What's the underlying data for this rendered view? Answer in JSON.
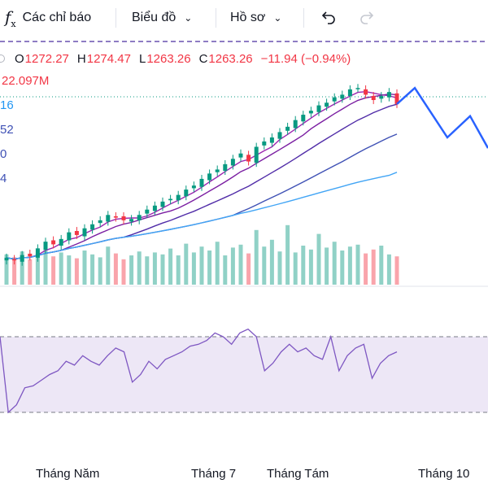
{
  "toolbar": {
    "indicators_label": "Các chỉ báo",
    "chart_type_label": "Biểu đồ",
    "profile_label": "Hồ sơ"
  },
  "legend": {
    "open_key": "O",
    "open_val": "1272.27",
    "high_key": "H",
    "high_val": "1274.47",
    "low_key": "L",
    "low_val": "1263.26",
    "close_key": "C",
    "close_val": "1263.26",
    "change": "−11.94 (−0.94%)",
    "volume": "22.097M"
  },
  "side_labels": {
    "ma1": "16",
    "ma2": "52",
    "ma3": "0",
    "ma4": "4"
  },
  "x_axis_labels": [
    "Tháng Năm",
    "Tháng 7",
    "Tháng Tám",
    "Tháng 10"
  ],
  "colors": {
    "up": "#089981",
    "down": "#f23645",
    "forecast": "#2962ff",
    "rsi": "#7e57c2",
    "rsi_band": "#ede7f6"
  },
  "chart_data": {
    "type": "candlestick",
    "last": {
      "open": 1272.27,
      "high": 1274.47,
      "low": 1263.26,
      "close": 1263.26,
      "change": -11.94,
      "change_pct": -0.94
    },
    "close_series": [
      1148,
      1146,
      1150,
      1149,
      1155,
      1160,
      1158,
      1162,
      1167,
      1165,
      1170,
      1173,
      1176,
      1180,
      1178,
      1176,
      1177,
      1180,
      1184,
      1187,
      1190,
      1192,
      1195,
      1199,
      1202,
      1207,
      1211,
      1214,
      1218,
      1222,
      1226,
      1220,
      1231,
      1235,
      1238,
      1242,
      1246,
      1251,
      1255,
      1258,
      1262,
      1264,
      1268,
      1270,
      1274,
      1275,
      1270,
      1266,
      1269,
      1272,
      1263
    ],
    "forecast_series": [
      1263,
      1275,
      1238,
      1254,
      1230
    ],
    "volume_series": [
      3.1,
      2.8,
      3.4,
      2.6,
      3.2,
      3.6,
      2.9,
      3.3,
      3.0,
      2.7,
      3.5,
      3.1,
      2.8,
      3.9,
      3.2,
      2.6,
      3.0,
      3.4,
      2.9,
      3.3,
      3.1,
      3.7,
      3.0,
      4.2,
      3.3,
      3.9,
      3.5,
      4.4,
      3.0,
      3.8,
      4.1,
      3.2,
      5.6,
      3.9,
      4.6,
      3.4,
      6.1,
      3.3,
      4.0,
      3.6,
      5.2,
      3.8,
      4.4,
      3.5,
      3.9,
      4.1,
      3.2,
      3.6,
      4.0,
      3.1,
      2.9
    ],
    "rsi_series": [
      70,
      30,
      34,
      43,
      44,
      47,
      50,
      52,
      57,
      55,
      60,
      57,
      55,
      60,
      64,
      62,
      46,
      50,
      57,
      53,
      58,
      60,
      62,
      65,
      66,
      68,
      72,
      70,
      66,
      72,
      74,
      70,
      52,
      56,
      62,
      66,
      62,
      64,
      60,
      58,
      70,
      52,
      60,
      64,
      66,
      48,
      56,
      60,
      62
    ]
  }
}
